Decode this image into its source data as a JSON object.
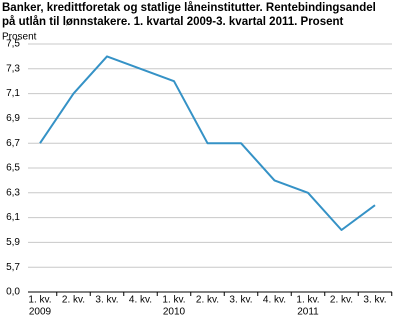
{
  "chart_data": {
    "type": "line",
    "title": [
      "Banker, kredittforetak og statlige låneinstitutter. Rentebindingsandel",
      "på utlån til lønnstakere. 1. kvartal 2009-3. kvartal 2011. Prosent"
    ],
    "y_label": "Prosent",
    "categories": [
      "1. kv.",
      "2. kv.",
      "3. kv.",
      "4. kv.",
      "1. kv.",
      "2. kv.",
      "3. kv.",
      "4. kv.",
      "1. kv.",
      "2. kv.",
      "3. kv."
    ],
    "year_labels": [
      "2009",
      null,
      null,
      null,
      "2010",
      null,
      null,
      null,
      "2011",
      null,
      null
    ],
    "series": [
      {
        "name": "Rentebindingsandel",
        "color": "#3592c6",
        "values": [
          6.7,
          7.1,
          7.4,
          7.3,
          7.2,
          6.7,
          6.7,
          6.4,
          6.3,
          6.0,
          6.2
        ]
      }
    ],
    "ylim": [
      5.5,
      7.5
    ],
    "axis_break": true,
    "yticks": [
      {
        "value": 0,
        "label": "0,0"
      },
      {
        "value": 5.7,
        "label": "5,7"
      },
      {
        "value": 5.9,
        "label": "5,9"
      },
      {
        "value": 6.1,
        "label": "6,1"
      },
      {
        "value": 6.3,
        "label": "6,3"
      },
      {
        "value": 6.5,
        "label": "6,5"
      },
      {
        "value": 6.7,
        "label": "6,7"
      },
      {
        "value": 6.9,
        "label": "6,9"
      },
      {
        "value": 7.1,
        "label": "7,1"
      },
      {
        "value": 7.3,
        "label": "7,3"
      },
      {
        "value": 7.5,
        "label": "7,5"
      }
    ],
    "grid": true
  }
}
